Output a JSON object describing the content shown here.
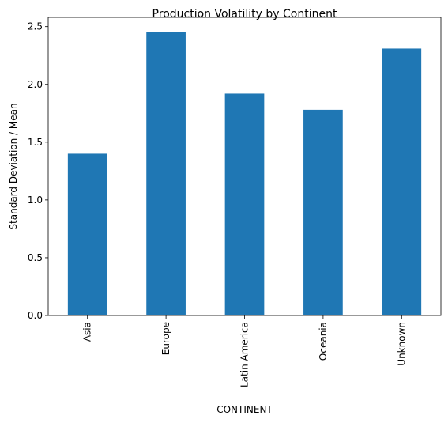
{
  "chart_data": {
    "type": "bar",
    "title": "Production Volatility by Continent",
    "xlabel": "CONTINENT",
    "ylabel": "Standard Deviation / Mean",
    "categories": [
      "Asia",
      "Europe",
      "Latin America",
      "Oceania",
      "Unknown"
    ],
    "values": [
      1.4,
      2.45,
      1.92,
      1.78,
      2.31
    ],
    "ylim": [
      0,
      2.58
    ],
    "yticks": [
      0.0,
      0.5,
      1.0,
      1.5,
      2.0,
      2.5
    ],
    "ytick_labels": [
      "0.0",
      "0.5",
      "1.0",
      "1.5",
      "2.0",
      "2.5"
    ],
    "bar_color": "#1f77b4",
    "grid": false,
    "legend": false
  }
}
